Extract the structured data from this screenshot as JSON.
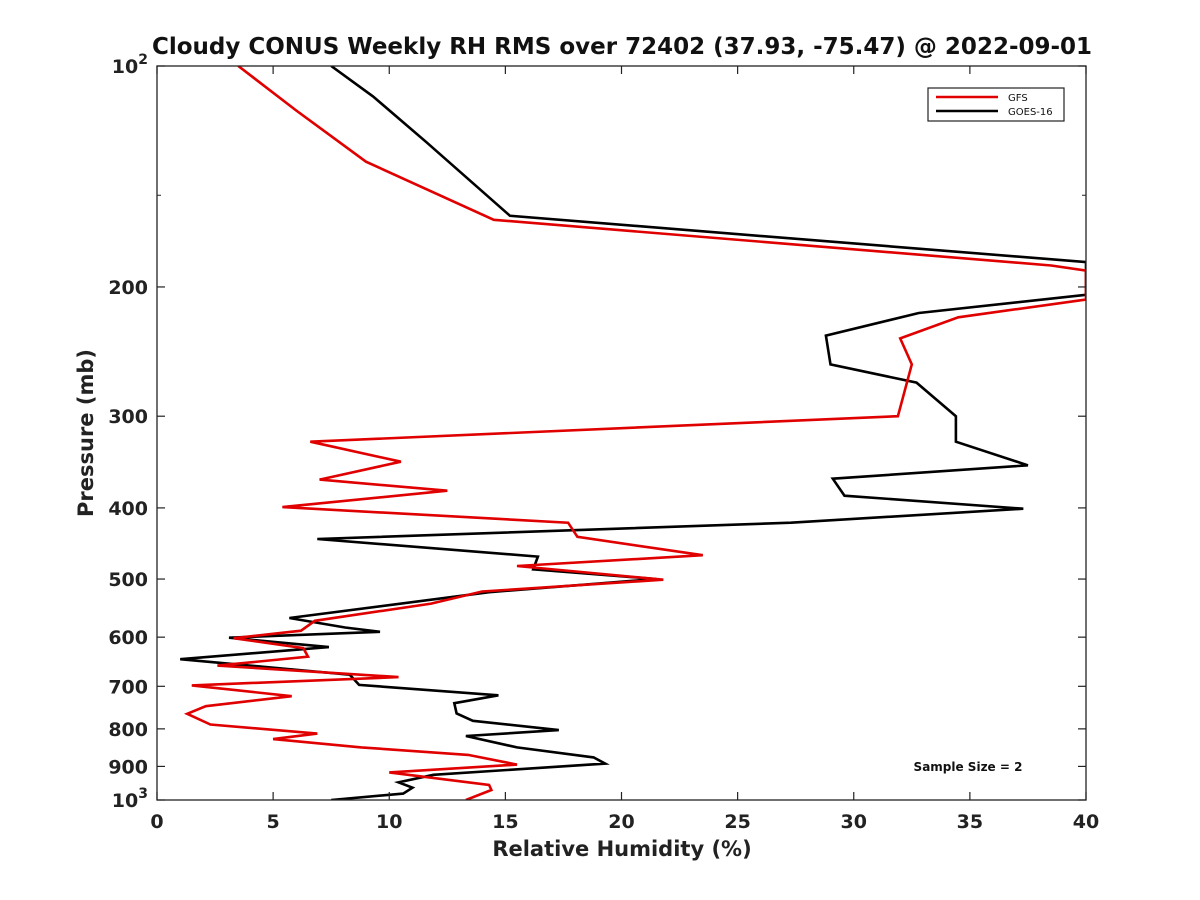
{
  "chart_data": {
    "type": "line",
    "title": "Cloudy CONUS Weekly RH RMS over 72402 (37.93, -75.47) @ 2022-09-01",
    "xlabel": "Relative Humidity (%)",
    "ylabel": "Pressure (mb)",
    "xlim": [
      0,
      40
    ],
    "ylim": [
      100,
      1000
    ],
    "y_scale": "log",
    "y_reversed": true,
    "grid": false,
    "legend_position": "top-right",
    "x_ticks": [
      "0",
      "5",
      "10",
      "15",
      "20",
      "25",
      "30",
      "35",
      "40"
    ],
    "y_ticks": [
      {
        "value": 100,
        "base": "10",
        "exp": "2"
      },
      {
        "value": 200,
        "label": "200"
      },
      {
        "value": 300,
        "label": "300"
      },
      {
        "value": 400,
        "label": "400"
      },
      {
        "value": 500,
        "label": "500"
      },
      {
        "value": 600,
        "label": "600"
      },
      {
        "value": 700,
        "label": "700"
      },
      {
        "value": 800,
        "label": "800"
      },
      {
        "value": 900,
        "label": "900"
      },
      {
        "value": 1000,
        "base": "10",
        "exp": "3"
      }
    ],
    "annotation": "Sample Size = 2",
    "series": [
      {
        "name": "GFS",
        "color": "#e00000",
        "points": [
          [
            3.5,
            100
          ],
          [
            6.0,
            115
          ],
          [
            9.0,
            135
          ],
          [
            14.5,
            162
          ],
          [
            38.5,
            187
          ],
          [
            40,
            190
          ],
          [
            40,
            208
          ],
          [
            34.5,
            220
          ],
          [
            32.0,
            235
          ],
          [
            32.5,
            255
          ],
          [
            31.9,
            300
          ],
          [
            6.6,
            325
          ],
          [
            10.5,
            346
          ],
          [
            7.0,
            366
          ],
          [
            12.5,
            379
          ],
          [
            5.4,
            399
          ],
          [
            17.7,
            419
          ],
          [
            18.1,
            438
          ],
          [
            23.5,
            464
          ],
          [
            15.5,
            480
          ],
          [
            21.8,
            501
          ],
          [
            14.0,
            520
          ],
          [
            11.8,
            540
          ],
          [
            6.8,
            570
          ],
          [
            6.2,
            588
          ],
          [
            3.3,
            602
          ],
          [
            6.3,
            621
          ],
          [
            6.5,
            638
          ],
          [
            2.6,
            656
          ],
          [
            10.4,
            680
          ],
          [
            1.5,
            698
          ],
          [
            5.8,
            722
          ],
          [
            2.1,
            745
          ],
          [
            1.3,
            763
          ],
          [
            2.3,
            789
          ],
          [
            6.9,
            812
          ],
          [
            5.0,
            826
          ],
          [
            8.8,
            848
          ],
          [
            13.4,
            868
          ],
          [
            15.5,
            895
          ],
          [
            10.0,
            917
          ],
          [
            14.3,
            954
          ],
          [
            14.4,
            969
          ],
          [
            13.3,
            1000
          ]
        ]
      },
      {
        "name": "GOES-16",
        "color": "#000000",
        "points": [
          [
            7.5,
            100
          ],
          [
            9.3,
            110
          ],
          [
            11.6,
            127
          ],
          [
            15.2,
            160
          ],
          [
            40,
            185
          ],
          [
            40,
            205
          ],
          [
            32.8,
            217
          ],
          [
            28.8,
            233
          ],
          [
            29.0,
            255
          ],
          [
            32.7,
            270
          ],
          [
            34.4,
            300
          ],
          [
            34.4,
            325
          ],
          [
            37.5,
            350
          ],
          [
            29.1,
            365
          ],
          [
            29.6,
            385
          ],
          [
            37.3,
            401
          ],
          [
            27.3,
            419
          ],
          [
            6.9,
            441
          ],
          [
            16.4,
            466
          ],
          [
            16.2,
            485
          ],
          [
            21.5,
            500
          ],
          [
            14.3,
            521
          ],
          [
            5.7,
            565
          ],
          [
            8.1,
            582
          ],
          [
            9.6,
            590
          ],
          [
            3.1,
            601
          ],
          [
            7.4,
            619
          ],
          [
            1.0,
            643
          ],
          [
            8.3,
            675
          ],
          [
            8.7,
            697
          ],
          [
            14.7,
            720
          ],
          [
            12.8,
            738
          ],
          [
            12.9,
            762
          ],
          [
            13.6,
            780
          ],
          [
            17.3,
            803
          ],
          [
            13.3,
            818
          ],
          [
            15.5,
            848
          ],
          [
            18.8,
            875
          ],
          [
            19.3,
            892
          ],
          [
            11.9,
            924
          ],
          [
            10.4,
            946
          ],
          [
            11.0,
            962
          ],
          [
            10.6,
            980
          ],
          [
            7.5,
            1000
          ]
        ]
      }
    ]
  }
}
